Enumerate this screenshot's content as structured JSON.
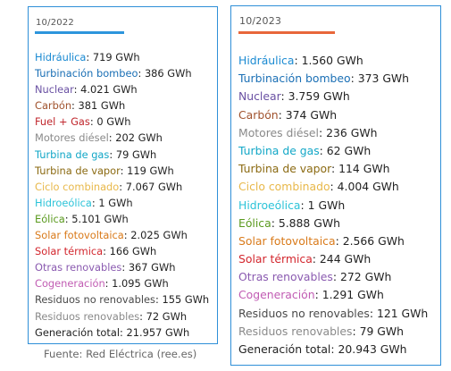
{
  "left": {
    "period": "10/2022",
    "accent_color": "#2d95dc",
    "rows": [
      {
        "label": "Hidráulica",
        "value": "719 GWh",
        "color": "#1a8ad2"
      },
      {
        "label": "Turbinación bombeo",
        "value": "386 GWh",
        "color": "#1a6fb5"
      },
      {
        "label": "Nuclear",
        "value": "4.021 GWh",
        "color": "#6a51a3"
      },
      {
        "label": "Carbón",
        "value": "381 GWh",
        "color": "#a0522d"
      },
      {
        "label": "Fuel + Gas",
        "value": "0 GWh",
        "color": "#c0272d"
      },
      {
        "label": "Motores diésel",
        "value": "202 GWh",
        "color": "#8a8a8a"
      },
      {
        "label": "Turbina de gas",
        "value": "79 GWh",
        "color": "#12a7c7"
      },
      {
        "label": "Turbina de vapor",
        "value": "119 GWh",
        "color": "#8b6a12"
      },
      {
        "label": "Ciclo combinado",
        "value": "7.067 GWh",
        "color": "#e8b84a"
      },
      {
        "label": "Hidroeólica",
        "value": "1 GWh",
        "color": "#2cc3d8"
      },
      {
        "label": "Eólica",
        "value": "5.101 GWh",
        "color": "#5a9a1e"
      },
      {
        "label": "Solar fotovoltaica",
        "value": "2.025 GWh",
        "color": "#d97a1a"
      },
      {
        "label": "Solar térmica",
        "value": "166 GWh",
        "color": "#d3262d"
      },
      {
        "label": "Otras renovables",
        "value": "367 GWh",
        "color": "#8a5ab0"
      },
      {
        "label": "Cogeneración",
        "value": "1.095 GWh",
        "color": "#c15cb3"
      },
      {
        "label": "Residuos no renovables",
        "value": "155 GWh",
        "color": "#4a4a4a"
      },
      {
        "label": "Residuos renovables",
        "value": "72 GWh",
        "color": "#8a8a8a"
      },
      {
        "label": "Generación total",
        "value": "21.957 GWh",
        "color": "#222222"
      }
    ]
  },
  "right": {
    "period": "10/2023",
    "accent_color": "#e8673a",
    "rows": [
      {
        "label": "Hidráulica",
        "value": "1.560 GWh",
        "color": "#1a8ad2"
      },
      {
        "label": "Turbinación bombeo",
        "value": "373 GWh",
        "color": "#1a6fb5"
      },
      {
        "label": "Nuclear",
        "value": "3.759 GWh",
        "color": "#6a51a3"
      },
      {
        "label": "Carbón",
        "value": "374 GWh",
        "color": "#a0522d"
      },
      {
        "label": "Motores diésel",
        "value": "236 GWh",
        "color": "#8a8a8a"
      },
      {
        "label": "Turbina de gas",
        "value": "62 GWh",
        "color": "#12a7c7"
      },
      {
        "label": "Turbina de vapor",
        "value": "114 GWh",
        "color": "#8b6a12"
      },
      {
        "label": "Ciclo combinado",
        "value": "4.004 GWh",
        "color": "#e8b84a"
      },
      {
        "label": "Hidroeólica",
        "value": "1 GWh",
        "color": "#2cc3d8"
      },
      {
        "label": "Eólica",
        "value": "5.888 GWh",
        "color": "#5a9a1e"
      },
      {
        "label": "Solar fotovoltaica",
        "value": "2.566 GWh",
        "color": "#d97a1a"
      },
      {
        "label": "Solar térmica",
        "value": "244 GWh",
        "color": "#d3262d"
      },
      {
        "label": "Otras renovables",
        "value": "272 GWh",
        "color": "#8a5ab0"
      },
      {
        "label": "Cogeneración",
        "value": "1.291 GWh",
        "color": "#c15cb3"
      },
      {
        "label": "Residuos no renovables",
        "value": "121 GWh",
        "color": "#4a4a4a"
      },
      {
        "label": "Residuos renovables",
        "value": "79 GWh",
        "color": "#8a8a8a"
      },
      {
        "label": "Generación total",
        "value": "20.943 GWh",
        "color": "#222222"
      }
    ]
  },
  "footer": "Fuente: Red Eléctrica (ree.es)"
}
